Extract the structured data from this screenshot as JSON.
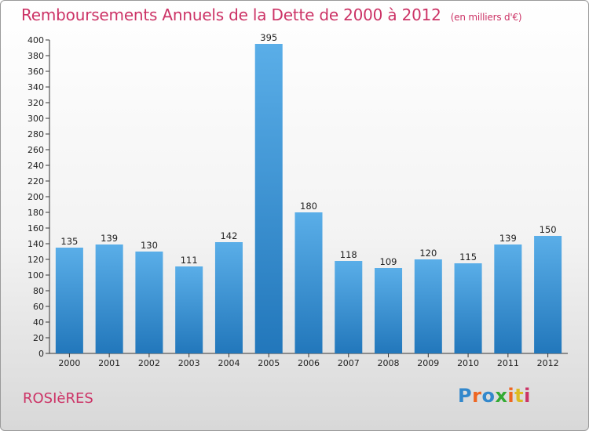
{
  "header": {
    "title": "Remboursements Annuels de la Dette de 2000 à 2012",
    "unit": "(en milliers d'€)"
  },
  "footer": {
    "city": "ROSIèRES",
    "logo_text": "Proxiti"
  },
  "colors": {
    "title": "#cc3366",
    "bar_top": "#5aaee8",
    "bar_bottom": "#2277bb",
    "logo_letters": [
      "#3388cc",
      "#ee6622",
      "#3388cc",
      "#33aa33",
      "#ee6622",
      "#ddbb22",
      "#cc3366"
    ]
  },
  "chart_data": {
    "type": "bar",
    "title": "Remboursements Annuels de la Dette de 2000 à 2012",
    "subtitle": "(en milliers d'€)",
    "categories": [
      "2000",
      "2001",
      "2002",
      "2003",
      "2004",
      "2005",
      "2006",
      "2007",
      "2008",
      "2009",
      "2010",
      "2011",
      "2012"
    ],
    "values": [
      135,
      139,
      130,
      111,
      142,
      395,
      180,
      118,
      109,
      120,
      115,
      139,
      150
    ],
    "ylim": [
      0,
      400
    ],
    "yticks": [
      0,
      20,
      40,
      60,
      80,
      100,
      120,
      140,
      160,
      180,
      200,
      220,
      240,
      260,
      280,
      300,
      320,
      340,
      360,
      380,
      400
    ],
    "grid": false,
    "data_labels": true
  }
}
